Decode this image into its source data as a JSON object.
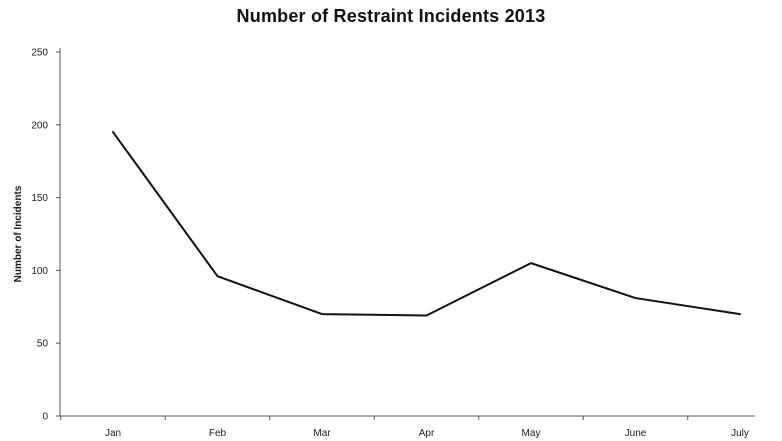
{
  "chart_data": {
    "type": "line",
    "title": "Number of Restraint Incidents 2013",
    "xlabel": "",
    "ylabel": "Number of Incidents",
    "categories": [
      "Jan",
      "Feb",
      "Mar",
      "Apr",
      "May",
      "June",
      "July"
    ],
    "series": [
      {
        "values": [
          195,
          96,
          70,
          69,
          105,
          81,
          70
        ]
      }
    ],
    "ylim": [
      0,
      250
    ],
    "yticks": [
      0,
      50,
      100,
      150,
      200,
      250
    ],
    "grid": false,
    "legend": "none",
    "line_color": "#111111"
  }
}
